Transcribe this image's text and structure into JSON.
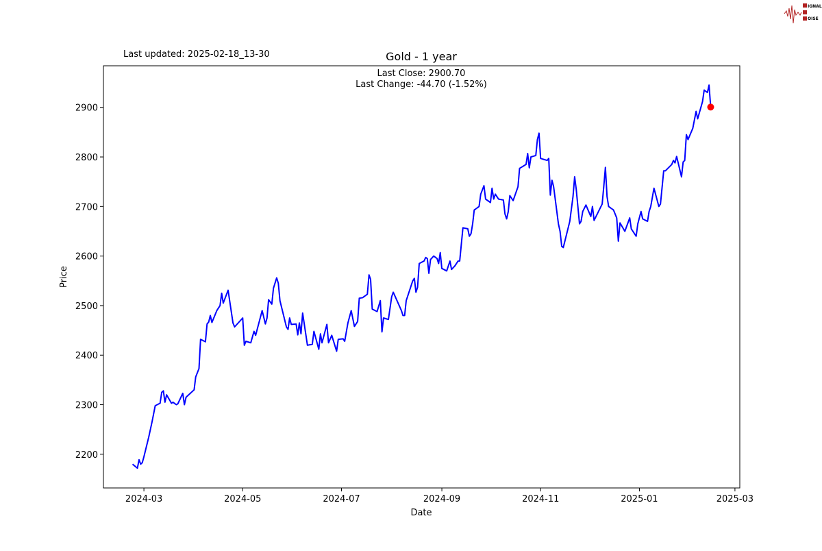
{
  "header": {
    "last_updated": "Last updated: 2025-02-18_13-30"
  },
  "logo": {
    "text": "SIGNAL 2 NOISE",
    "color": "#b22222"
  },
  "chart_data": {
    "type": "line",
    "title": "Gold - 1 year",
    "xlabel": "Date",
    "ylabel": "Price",
    "annotation": {
      "line1": "Last Close: 2900.70",
      "line2": "Last Change: -44.70 (-1.52%)"
    },
    "xlim": [
      "2024-02-05",
      "2025-03-04"
    ],
    "ylim": [
      2132,
      2984
    ],
    "x_ticks": [
      "2024-03",
      "2024-05",
      "2024-07",
      "2024-09",
      "2024-11",
      "2025-01",
      "2025-03"
    ],
    "y_ticks": [
      2200,
      2300,
      2400,
      2500,
      2600,
      2700,
      2800,
      2900
    ],
    "grid": false,
    "line_color": "#0000ff",
    "marker_color": "#ff0000",
    "last_point": {
      "x": "2025-02-14",
      "y": 2900.7
    },
    "series": [
      {
        "x": [
          "2024-02-23",
          "2024-02-26",
          "2024-02-27",
          "2024-02-28",
          "2024-02-29",
          "2024-03-01",
          "2024-03-04",
          "2024-03-06",
          "2024-03-08",
          "2024-03-11",
          "2024-03-12",
          "2024-03-13",
          "2024-03-14",
          "2024-03-15",
          "2024-03-18",
          "2024-03-19",
          "2024-03-21",
          "2024-03-22",
          "2024-03-25",
          "2024-03-26",
          "2024-03-27",
          "2024-03-28",
          "2024-04-01",
          "2024-04-02",
          "2024-04-04",
          "2024-04-05",
          "2024-04-08",
          "2024-04-09",
          "2024-04-10",
          "2024-04-11",
          "2024-04-12",
          "2024-04-15",
          "2024-04-17",
          "2024-04-18",
          "2024-04-19",
          "2024-04-22",
          "2024-04-25",
          "2024-04-26",
          "2024-05-01",
          "2024-05-02",
          "2024-05-03",
          "2024-05-06",
          "2024-05-08",
          "2024-05-09",
          "2024-05-13",
          "2024-05-15",
          "2024-05-16",
          "2024-05-17",
          "2024-05-19",
          "2024-05-20",
          "2024-05-22",
          "2024-05-23",
          "2024-05-24",
          "2024-05-28",
          "2024-05-29",
          "2024-05-30",
          "2024-05-31",
          "2024-06-03",
          "2024-06-04",
          "2024-06-05",
          "2024-06-06",
          "2024-06-07",
          "2024-06-10",
          "2024-06-13",
          "2024-06-14",
          "2024-06-17",
          "2024-06-18",
          "2024-06-19",
          "2024-06-22",
          "2024-06-23",
          "2024-06-25",
          "2024-06-28",
          "2024-06-29",
          "2024-07-02",
          "2024-07-03",
          "2024-07-05",
          "2024-07-07",
          "2024-07-09",
          "2024-07-11",
          "2024-07-12",
          "2024-07-14",
          "2024-07-17",
          "2024-07-18",
          "2024-07-19",
          "2024-07-20",
          "2024-07-23",
          "2024-07-25",
          "2024-07-26",
          "2024-07-27",
          "2024-07-30",
          "2024-08-01",
          "2024-08-02",
          "2024-08-07",
          "2024-08-08",
          "2024-08-09",
          "2024-08-10",
          "2024-08-14",
          "2024-08-15",
          "2024-08-16",
          "2024-08-17",
          "2024-08-18",
          "2024-08-21",
          "2024-08-22",
          "2024-08-23",
          "2024-08-24",
          "2024-08-25",
          "2024-08-27",
          "2024-08-29",
          "2024-08-30",
          "2024-08-31",
          "2024-09-01",
          "2024-09-04",
          "2024-09-06",
          "2024-09-07",
          "2024-09-09",
          "2024-09-11",
          "2024-09-12",
          "2024-09-14",
          "2024-09-17",
          "2024-09-18",
          "2024-09-19",
          "2024-09-20",
          "2024-09-21",
          "2024-09-24",
          "2024-09-25",
          "2024-09-27",
          "2024-09-28",
          "2024-10-01",
          "2024-10-02",
          "2024-10-03",
          "2024-10-04",
          "2024-10-06",
          "2024-10-09",
          "2024-10-10",
          "2024-10-11",
          "2024-10-12",
          "2024-10-13",
          "2024-10-15",
          "2024-10-18",
          "2024-10-19",
          "2024-10-23",
          "2024-10-24",
          "2024-10-25",
          "2024-10-26",
          "2024-10-29",
          "2024-10-30",
          "2024-10-31",
          "2024-11-01",
          "2024-11-05",
          "2024-11-06",
          "2024-11-07",
          "2024-11-08",
          "2024-11-09",
          "2024-11-12",
          "2024-11-13",
          "2024-11-14",
          "2024-11-15",
          "2024-11-19",
          "2024-11-21",
          "2024-11-22",
          "2024-11-23",
          "2024-11-25",
          "2024-11-26",
          "2024-11-27",
          "2024-11-29",
          "2024-12-02",
          "2024-12-03",
          "2024-12-04",
          "2024-12-09",
          "2024-12-10",
          "2024-12-11",
          "2024-12-12",
          "2024-12-13",
          "2024-12-16",
          "2024-12-18",
          "2024-12-19",
          "2024-12-20",
          "2024-12-23",
          "2024-12-26",
          "2024-12-27",
          "2024-12-30",
          "2024-12-31",
          "2025-01-02",
          "2025-01-03",
          "2025-01-06",
          "2025-01-07",
          "2025-01-08",
          "2025-01-10",
          "2025-01-13",
          "2025-01-14",
          "2025-01-16",
          "2025-01-17",
          "2025-01-21",
          "2025-01-22",
          "2025-01-23",
          "2025-01-24",
          "2025-01-27",
          "2025-01-28",
          "2025-01-29",
          "2025-01-30",
          "2025-01-31",
          "2025-02-03",
          "2025-02-05",
          "2025-02-06",
          "2025-02-09",
          "2025-02-10",
          "2025-02-12",
          "2025-02-13",
          "2025-02-14"
        ],
        "y": [
          2180,
          2172,
          2189,
          2180,
          2183,
          2195,
          2235,
          2265,
          2298,
          2303,
          2325,
          2328,
          2305,
          2320,
          2303,
          2305,
          2300,
          2302,
          2323,
          2300,
          2315,
          2318,
          2330,
          2356,
          2373,
          2432,
          2427,
          2463,
          2467,
          2480,
          2466,
          2490,
          2500,
          2525,
          2505,
          2531,
          2465,
          2457,
          2475,
          2420,
          2428,
          2425,
          2448,
          2440,
          2490,
          2463,
          2475,
          2512,
          2503,
          2535,
          2556,
          2545,
          2510,
          2457,
          2452,
          2475,
          2462,
          2463,
          2441,
          2465,
          2443,
          2485,
          2420,
          2422,
          2448,
          2412,
          2443,
          2425,
          2462,
          2425,
          2440,
          2408,
          2432,
          2433,
          2428,
          2465,
          2490,
          2458,
          2468,
          2515,
          2516,
          2523,
          2562,
          2553,
          2493,
          2488,
          2510,
          2447,
          2475,
          2472,
          2518,
          2527,
          2490,
          2480,
          2480,
          2510,
          2550,
          2555,
          2527,
          2537,
          2585,
          2590,
          2597,
          2595,
          2565,
          2593,
          2600,
          2595,
          2585,
          2607,
          2575,
          2570,
          2590,
          2573,
          2580,
          2590,
          2590,
          2657,
          2655,
          2640,
          2645,
          2665,
          2693,
          2700,
          2725,
          2742,
          2715,
          2708,
          2737,
          2715,
          2725,
          2715,
          2713,
          2685,
          2675,
          2690,
          2722,
          2712,
          2740,
          2777,
          2785,
          2807,
          2778,
          2800,
          2803,
          2835,
          2848,
          2797,
          2793,
          2797,
          2723,
          2753,
          2740,
          2665,
          2650,
          2620,
          2617,
          2670,
          2720,
          2760,
          2735,
          2665,
          2670,
          2690,
          2703,
          2680,
          2700,
          2672,
          2705,
          2740,
          2779,
          2720,
          2700,
          2693,
          2677,
          2630,
          2667,
          2650,
          2677,
          2655,
          2640,
          2665,
          2690,
          2675,
          2670,
          2690,
          2700,
          2737,
          2700,
          2705,
          2772,
          2772,
          2785,
          2793,
          2788,
          2801,
          2760,
          2790,
          2793,
          2845,
          2835,
          2858,
          2892,
          2877,
          2912,
          2935,
          2930,
          2945,
          2900.7
        ]
      }
    ]
  }
}
